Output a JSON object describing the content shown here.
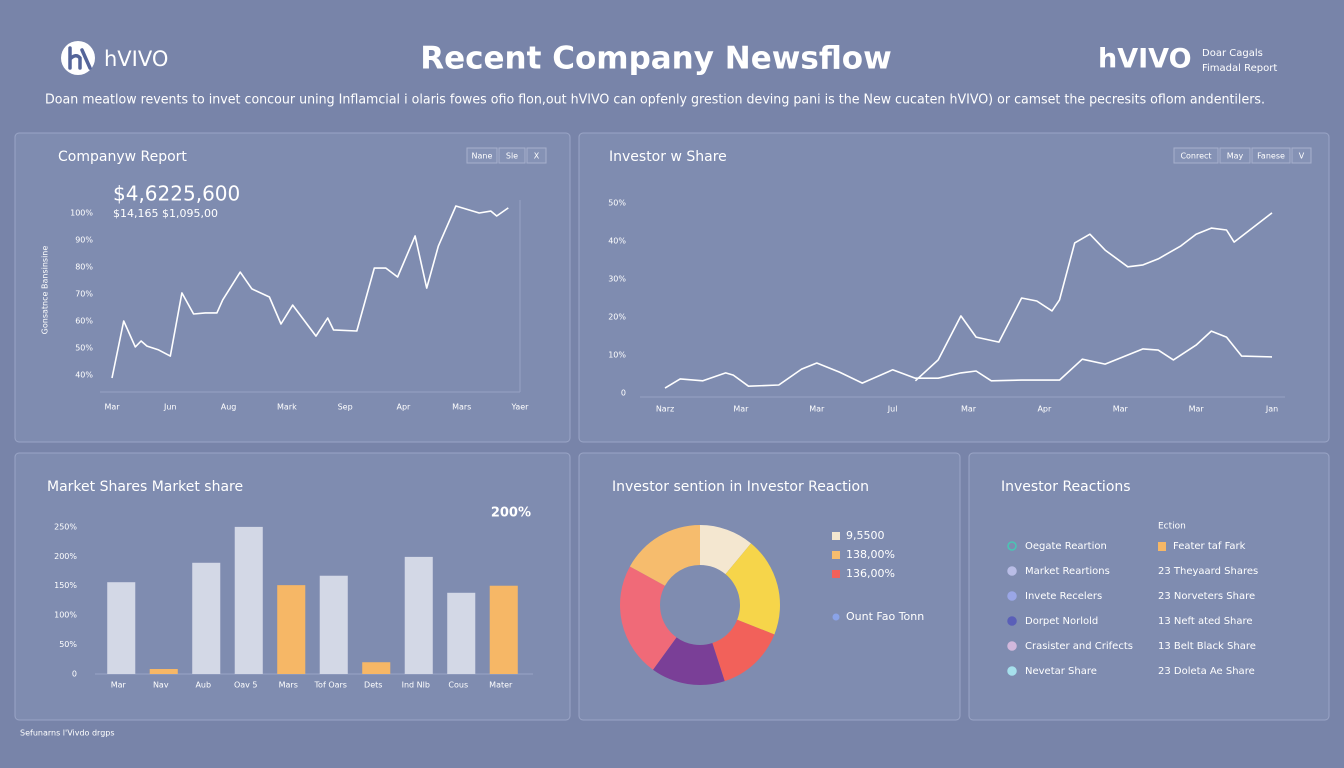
{
  "header": {
    "logo": "hVIVO",
    "title": "Recent Company Newsflow",
    "brand": "hVIVO",
    "brand_lines": [
      "Doar Cagals",
      "Fimadal Report"
    ],
    "subtitle": "Doan meatlow revents to invet concour uning Inflamcial i olaris fowes ofio flon,out hVIVO can opfenly grestion deving pani is the New cucaten hVIVO) or camset the pecresits oflom andentilers."
  },
  "footer": "Sefunarns l'Vivdo drgps",
  "chart_data": [
    {
      "type": "line",
      "title": "Companyw Report",
      "controls": [
        "Nane",
        "Sle",
        "X"
      ],
      "headline": "$4,6225,600",
      "subheadline": "$14,165 $1,095,00",
      "ylabel": "Gonsatnce Bansinsine",
      "x": [
        0,
        0.2,
        0.4,
        0.5,
        0.6,
        0.8,
        1,
        1.2,
        1.4,
        1.6,
        1.8,
        1.9,
        2.2,
        2.4,
        2.7,
        2.9,
        3.1,
        3.5,
        3.7,
        3.8,
        4.2,
        4.5,
        4.7,
        4.9,
        5.2,
        5.4,
        5.6,
        5.9,
        6.3,
        6.5,
        6.6,
        6.8
      ],
      "series": [
        {
          "color": "#ffffff",
          "values": [
            38.9,
            60,
            50.4,
            52.6,
            50.7,
            49.3,
            47,
            70.4,
            62.6,
            63,
            63,
            67.8,
            78.1,
            71.9,
            68.9,
            58.9,
            65.9,
            54.4,
            61.1,
            56.7,
            56.3,
            79.6,
            79.6,
            76.3,
            91.5,
            72.2,
            87.8,
            102.6,
            100,
            100.7,
            98.9,
            101.9
          ]
        }
      ],
      "xlim": [
        0,
        7
      ],
      "xticks": [
        {
          "value": 0,
          "label": "Mar"
        },
        {
          "value": 1,
          "label": "Jun"
        },
        {
          "value": 2,
          "label": "Aug"
        },
        {
          "value": 3,
          "label": "Mark"
        },
        {
          "value": 4,
          "label": "Sep"
        },
        {
          "value": 5,
          "label": "Apr"
        },
        {
          "value": 6,
          "label": "Mars"
        },
        {
          "value": 7,
          "label": "Yaer"
        }
      ],
      "ylim": [
        38,
        104
      ],
      "yticks": [
        {
          "value": 40,
          "label": "40%"
        },
        {
          "value": 50,
          "label": "50%"
        },
        {
          "value": 60,
          "label": "60%"
        },
        {
          "value": 70,
          "label": "70%"
        },
        {
          "value": 80,
          "label": "80%"
        },
        {
          "value": 90,
          "label": "90%"
        },
        {
          "value": 100,
          "label": "100%"
        }
      ],
      "grid": false
    },
    {
      "type": "line",
      "title": "Investor w Share",
      "controls": [
        "Conrect",
        "May",
        "Fanese",
        "V"
      ],
      "series": [
        {
          "color": "#ffffff",
          "x": [
            3.3,
            3.6,
            3.9,
            4.1,
            4.4,
            4.7,
            4.9,
            5.1,
            5.2,
            5.4,
            5.6,
            5.8,
            6.1,
            6.3,
            6.5,
            6.8,
            7.0,
            7.2,
            7.4,
            7.5,
            8.0
          ],
          "values": [
            3.2,
            8.7,
            20.3,
            14.7,
            13.4,
            25,
            24.2,
            21.6,
            24.5,
            39.5,
            41.8,
            37.6,
            33.2,
            33.7,
            35.3,
            38.7,
            41.8,
            43.4,
            42.9,
            39.7,
            47.4
          ]
        },
        {
          "color": "#ffffff",
          "x": [
            0,
            0.2,
            0.5,
            0.8,
            0.9,
            1.1,
            1.5,
            1.8,
            2.0,
            2.3,
            2.6,
            3.0,
            3.3,
            3.6,
            3.9,
            4.1,
            4.3,
            4.7,
            4.9,
            5.2,
            5.5,
            5.8,
            6.3,
            6.5,
            6.7,
            7.0,
            7.2,
            7.4,
            7.6,
            8.0
          ],
          "values": [
            1.3,
            3.7,
            3.2,
            5.3,
            4.7,
            1.8,
            2.1,
            6.3,
            7.9,
            5.5,
            2.6,
            6.1,
            3.9,
            3.9,
            5.3,
            5.8,
            3.2,
            3.4,
            3.4,
            3.4,
            8.9,
            7.6,
            11.6,
            11.3,
            8.7,
            12.6,
            16.3,
            14.7,
            9.7,
            9.5
          ]
        }
      ],
      "xlim": [
        0,
        8
      ],
      "xticks": [
        {
          "value": 0,
          "label": "Narz"
        },
        {
          "value": 1,
          "label": "Mar"
        },
        {
          "value": 2,
          "label": "Mar"
        },
        {
          "value": 3,
          "label": "Jul"
        },
        {
          "value": 4,
          "label": "Mar"
        },
        {
          "value": 5,
          "label": "Apr"
        },
        {
          "value": 6,
          "label": "Mar"
        },
        {
          "value": 7,
          "label": "Mar"
        },
        {
          "value": 8,
          "label": "Jan"
        }
      ],
      "ylim": [
        0,
        52
      ],
      "yticks": [
        0,
        {
          "value": 10,
          "label": "10%"
        },
        {
          "value": 20,
          "label": "20%"
        },
        {
          "value": 30,
          "label": "30%"
        },
        {
          "value": 40,
          "label": "40%"
        },
        {
          "value": 50,
          "label": "50%"
        }
      ],
      "grid": false
    },
    {
      "type": "bar",
      "title": "Market Shares Market share",
      "annotation": "200%",
      "categories": [
        "Mar",
        "Nav",
        "Aub",
        "Oav 5",
        "Mars",
        "Tof Oars",
        "Dets",
        "Ind Nlb",
        "Cous",
        "Mater"
      ],
      "values": [
        156,
        8.5,
        189,
        250,
        151,
        167,
        20,
        199,
        138,
        150
      ],
      "colors": [
        "#d3d8e6",
        "#f6b766",
        "#d3d8e6",
        "#d3d8e6",
        "#f6b766",
        "#d3d8e6",
        "#f6b766",
        "#d3d8e6",
        "#d3d8e6",
        "#f6b766"
      ],
      "ylim": [
        0,
        260
      ],
      "yticks": [
        0,
        {
          "value": 50,
          "label": "50%"
        },
        {
          "value": 100,
          "label": "100%"
        },
        {
          "value": 150,
          "label": "150%"
        },
        {
          "value": 200,
          "label": "200%"
        },
        {
          "value": 250,
          "label": "250%"
        }
      ],
      "grid": false
    },
    {
      "type": "pie",
      "title": "Investor sention in Investor Reaction",
      "donut": true,
      "values": [
        11,
        20,
        14,
        15,
        23,
        17
      ],
      "colors": [
        "#f4e7d0",
        "#f6d54a",
        "#f2615a",
        "#7a3f97",
        "#f06a78",
        "#f6bc6d"
      ],
      "legend": [
        {
          "label": "9,5500",
          "color": "#f4e7d0"
        },
        {
          "label": "138,00%",
          "color": "#f6bc6d"
        },
        {
          "label": "136,00%",
          "color": "#f2615a"
        },
        {
          "label": "Ount Fao Tonn",
          "color": "#8aa3e8"
        }
      ]
    }
  ],
  "reactions": {
    "title": "Investor Reactions",
    "header": "Ection",
    "left": [
      {
        "label": "Oegate Reartion",
        "color": "#49c6b4"
      },
      {
        "label": "Market Reartions",
        "color": "#b9bde6"
      },
      {
        "label": "Invete Recelers",
        "color": "#9aa6e6"
      },
      {
        "label": "Dorpet Norlold",
        "color": "#5a5fb8"
      },
      {
        "label": "Crasister and Crifects",
        "color": "#d2b8dc"
      },
      {
        "label": "Nevetar Share",
        "color": "#a6e0ec"
      }
    ],
    "right": [
      {
        "label": "Feater taf Fark",
        "color": "#f6b766"
      },
      {
        "label": "23 Theyaard Shares"
      },
      {
        "label": "23 Norveters Share"
      },
      {
        "label": "13 Neft ated Share"
      },
      {
        "label": "13 Belt Black Share"
      },
      {
        "label": "23 Doleta Ae Share"
      }
    ]
  }
}
